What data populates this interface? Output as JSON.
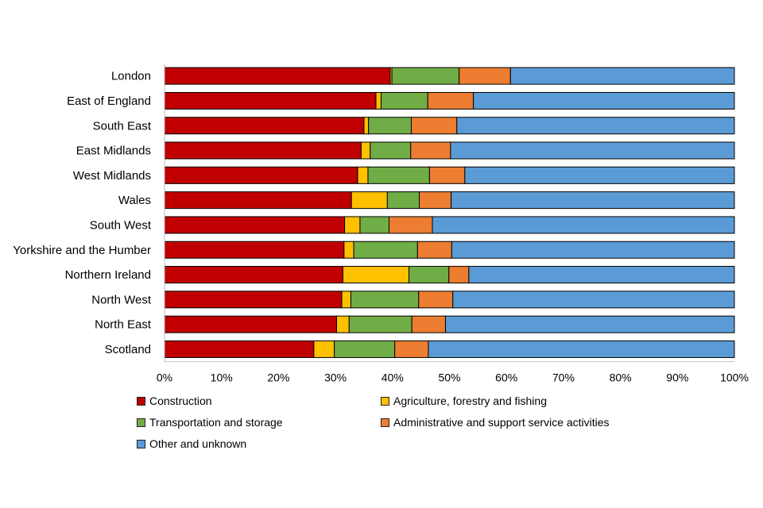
{
  "chart_data": {
    "type": "bar",
    "orientation": "horizontal",
    "stacked": true,
    "percent": true,
    "categories": [
      "London",
      "East of England",
      "South East",
      "East Midlands",
      "West Midlands",
      "Wales",
      "South West",
      "Yorkshire and the Humber",
      "Northern Ireland",
      "North West",
      "North East",
      "Scotland"
    ],
    "series": [
      {
        "name": "Construction",
        "color": "#c00000",
        "values": [
          39.6,
          37.1,
          35.0,
          34.5,
          33.9,
          32.8,
          31.6,
          31.5,
          31.3,
          31.1,
          30.2,
          26.2
        ]
      },
      {
        "name": "Agriculture, forestry and fishing",
        "color": "#ffc000",
        "values": [
          0.3,
          0.9,
          0.8,
          1.6,
          1.8,
          6.3,
          2.7,
          1.7,
          11.6,
          1.6,
          2.2,
          3.6
        ]
      },
      {
        "name": "Transportation and storage",
        "color": "#70ad47",
        "values": [
          11.8,
          8.2,
          7.5,
          7.1,
          10.8,
          5.6,
          5.1,
          11.2,
          7.0,
          11.9,
          11.0,
          10.6
        ]
      },
      {
        "name": "Administrative and support service activities",
        "color": "#ed7d31",
        "values": [
          9.0,
          8.0,
          8.0,
          7.0,
          6.2,
          5.6,
          7.6,
          6.0,
          3.5,
          6.0,
          5.9,
          5.9
        ]
      },
      {
        "name": "Other and unknown",
        "color": "#5b9bd5",
        "values": [
          39.3,
          45.8,
          48.7,
          49.8,
          47.3,
          49.7,
          53.0,
          49.6,
          46.6,
          49.4,
          50.7,
          53.7
        ]
      }
    ],
    "xlim": [
      0,
      100
    ],
    "xticks": [
      "0%",
      "10%",
      "20%",
      "30%",
      "40%",
      "50%",
      "60%",
      "70%",
      "80%",
      "90%",
      "100%"
    ],
    "title": "",
    "xlabel": "",
    "ylabel": "",
    "grid": false,
    "legend_position": "bottom"
  }
}
